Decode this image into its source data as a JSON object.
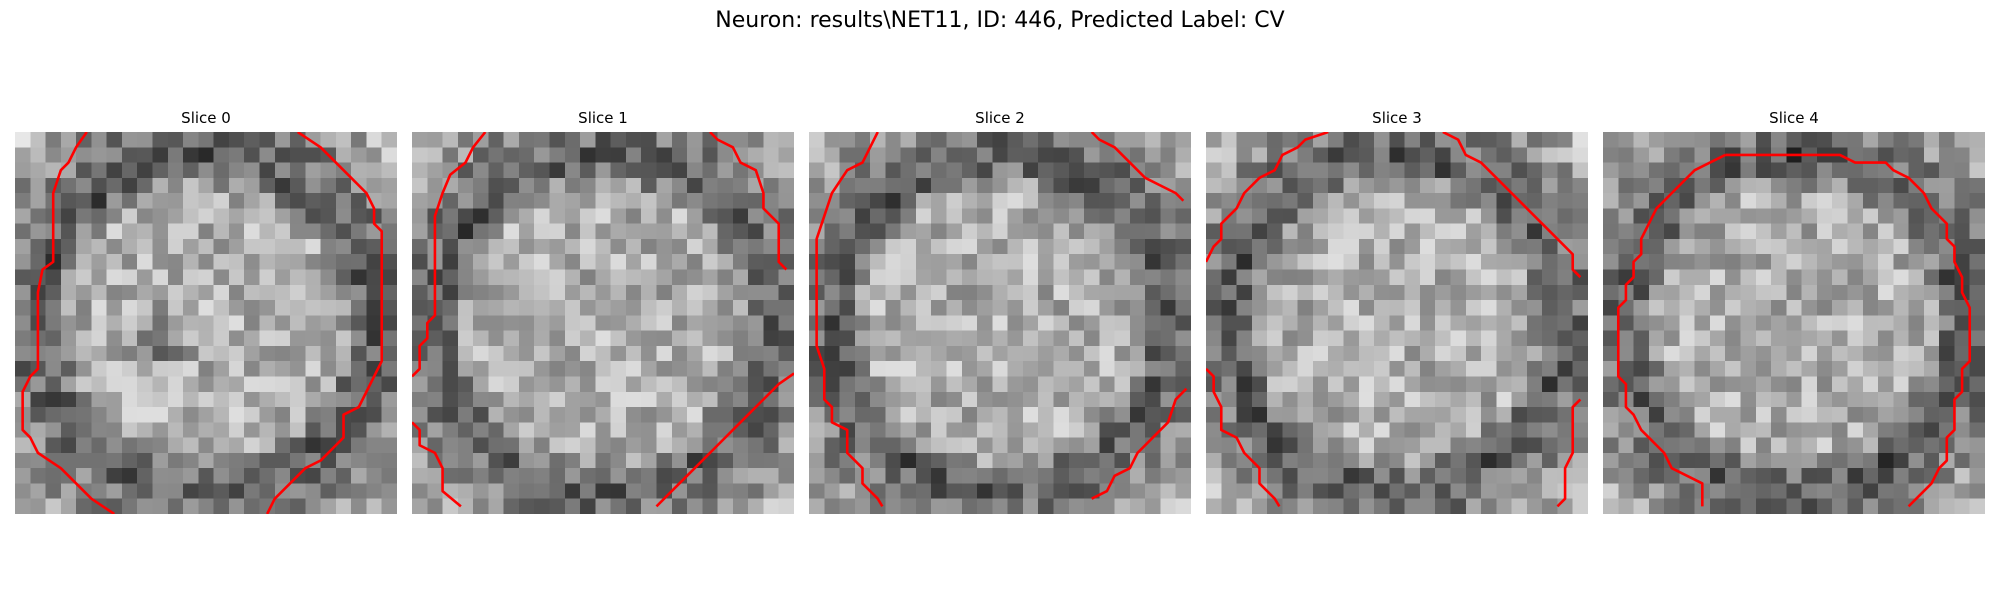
{
  "figure": {
    "title": "Neuron: results\\NET11, ID: 446, Predicted Label: CV"
  },
  "panels": [
    {
      "title": "Slice 0",
      "seed": 11,
      "dark_blob": true
    },
    {
      "title": "Slice 1",
      "seed": 23,
      "dark_blob": false
    },
    {
      "title": "Slice 2",
      "seed": 37,
      "dark_blob": false
    },
    {
      "title": "Slice 3",
      "seed": 41,
      "dark_blob": false
    },
    {
      "title": "Slice 4",
      "seed": 59,
      "dark_blob": false
    }
  ],
  "colors": {
    "contour": "#ff0000",
    "background": "#ffffff",
    "text": "#000000"
  },
  "image_grid_size": 25,
  "contours": [
    [
      [
        [
          4.7,
          0
        ],
        [
          4,
          1
        ],
        [
          3.5,
          2
        ],
        [
          3,
          2.5
        ],
        [
          2.5,
          4
        ],
        [
          2.5,
          8.5
        ],
        [
          1.8,
          9
        ],
        [
          1.5,
          10.5
        ],
        [
          1.5,
          15.5
        ],
        [
          1,
          16
        ],
        [
          0.5,
          17
        ],
        [
          0.5,
          19.5
        ],
        [
          1,
          20
        ],
        [
          1.5,
          21
        ],
        [
          3,
          22
        ],
        [
          4,
          23
        ],
        [
          5,
          24
        ],
        [
          6.5,
          25
        ]
      ],
      [
        [
          18.5,
          0
        ],
        [
          20,
          1
        ],
        [
          21,
          2
        ],
        [
          22,
          3
        ],
        [
          23,
          4
        ],
        [
          23.5,
          5
        ],
        [
          23.5,
          6
        ],
        [
          24,
          6.5
        ],
        [
          24,
          12
        ],
        [
          24,
          15
        ],
        [
          23.5,
          16
        ],
        [
          23,
          17
        ],
        [
          22.5,
          18
        ],
        [
          21.5,
          18.5
        ],
        [
          21.5,
          20
        ],
        [
          21,
          20.5
        ],
        [
          20,
          21.5
        ],
        [
          19,
          22
        ],
        [
          18,
          23
        ],
        [
          17,
          24
        ],
        [
          16.5,
          25
        ]
      ]
    ],
    [
      [
        [
          4.8,
          0
        ],
        [
          4,
          1
        ],
        [
          3.5,
          2
        ],
        [
          2.5,
          2.8
        ],
        [
          2,
          4
        ],
        [
          1.5,
          5.5
        ],
        [
          1.5,
          12
        ],
        [
          1,
          12.5
        ],
        [
          1,
          13.5
        ],
        [
          0.5,
          14
        ],
        [
          0.5,
          15.5
        ],
        [
          0,
          16
        ]
      ],
      [
        [
          0,
          19
        ],
        [
          0.5,
          19.5
        ],
        [
          0.5,
          20.5
        ],
        [
          1.5,
          21
        ],
        [
          2,
          22
        ],
        [
          2,
          23.5
        ],
        [
          3.2,
          24.5
        ]
      ],
      [
        [
          19.5,
          0
        ],
        [
          20,
          0.5
        ],
        [
          21,
          1
        ],
        [
          21.5,
          2
        ],
        [
          22.5,
          2.5
        ],
        [
          23,
          4
        ],
        [
          23,
          5
        ],
        [
          24,
          6
        ],
        [
          24,
          8.5
        ],
        [
          24.5,
          9
        ]
      ],
      [
        [
          25,
          15.8
        ],
        [
          24,
          16.5
        ],
        [
          23,
          17.5
        ],
        [
          22,
          18.5
        ],
        [
          21,
          19.5
        ],
        [
          20,
          20.5
        ],
        [
          19,
          21.5
        ],
        [
          18,
          22.5
        ],
        [
          17,
          23.5
        ],
        [
          16,
          24.5
        ]
      ]
    ],
    [
      [
        [
          4.5,
          0
        ],
        [
          4,
          1
        ],
        [
          3.5,
          2
        ],
        [
          2.5,
          2.5
        ],
        [
          1.5,
          4
        ],
        [
          1,
          5.5
        ],
        [
          0.5,
          7
        ],
        [
          0.5,
          14
        ],
        [
          1,
          15.5
        ],
        [
          1,
          17.5
        ],
        [
          1.5,
          18
        ],
        [
          1.5,
          19
        ],
        [
          2.5,
          19.5
        ],
        [
          2.5,
          21
        ],
        [
          3.5,
          22
        ],
        [
          3.5,
          23
        ],
        [
          4.5,
          24
        ],
        [
          4.8,
          24.5
        ]
      ],
      [
        [
          18.5,
          0
        ],
        [
          19,
          0.5
        ],
        [
          20,
          1
        ],
        [
          21,
          2
        ],
        [
          22,
          3
        ],
        [
          23,
          3.5
        ],
        [
          24,
          4
        ],
        [
          24.5,
          4.5
        ]
      ],
      [
        [
          24.7,
          16.8
        ],
        [
          24,
          17.5
        ],
        [
          23.5,
          19
        ],
        [
          22.5,
          20
        ],
        [
          21.5,
          21
        ],
        [
          21,
          22
        ],
        [
          20,
          22.5
        ],
        [
          19.5,
          23.5
        ],
        [
          18.5,
          24
        ]
      ]
    ],
    [
      [
        [
          8,
          0
        ],
        [
          6.5,
          0.5
        ],
        [
          6,
          1
        ],
        [
          5,
          1.5
        ],
        [
          4.5,
          2.5
        ],
        [
          3.5,
          3
        ],
        [
          2.5,
          4
        ],
        [
          2,
          5
        ],
        [
          1,
          6
        ],
        [
          1,
          7
        ],
        [
          0.5,
          7.5
        ],
        [
          0,
          8.5
        ]
      ],
      [
        [
          0,
          15.5
        ],
        [
          0.5,
          16
        ],
        [
          0.5,
          17
        ],
        [
          1,
          18
        ],
        [
          1,
          19.5
        ],
        [
          2,
          20
        ],
        [
          2.5,
          21
        ],
        [
          3.5,
          22
        ],
        [
          3.5,
          23
        ],
        [
          4.5,
          24
        ],
        [
          4.8,
          24.5
        ]
      ],
      [
        [
          15.5,
          0
        ],
        [
          16.5,
          0.5
        ],
        [
          17,
          1.5
        ],
        [
          18,
          2
        ],
        [
          19,
          3
        ],
        [
          20,
          4
        ],
        [
          21,
          5
        ],
        [
          22,
          6
        ],
        [
          23,
          7
        ],
        [
          24,
          8
        ],
        [
          24,
          9
        ],
        [
          24.5,
          9.5
        ]
      ],
      [
        [
          24.5,
          17.5
        ],
        [
          24,
          18
        ],
        [
          24,
          21
        ],
        [
          23.5,
          22
        ],
        [
          23.5,
          24
        ],
        [
          23,
          24.5
        ]
      ]
    ],
    [
      [
        [
          8,
          1.5
        ],
        [
          7,
          2
        ],
        [
          6,
          2.5
        ],
        [
          5.5,
          3
        ],
        [
          4.5,
          4
        ],
        [
          3.5,
          5
        ],
        [
          3,
          6
        ],
        [
          2.5,
          7
        ],
        [
          2.5,
          8
        ],
        [
          2,
          8.5
        ],
        [
          2,
          9.5
        ],
        [
          1.5,
          10
        ],
        [
          1.5,
          11
        ],
        [
          1,
          11.5
        ],
        [
          1,
          16
        ],
        [
          1.5,
          16.5
        ],
        [
          1.5,
          18
        ],
        [
          2,
          18.5
        ],
        [
          2.5,
          19.5
        ],
        [
          3,
          20
        ],
        [
          3.5,
          20.5
        ],
        [
          4,
          21
        ],
        [
          4.5,
          22
        ],
        [
          5.5,
          22.5
        ],
        [
          6.5,
          23
        ],
        [
          6.5,
          24.5
        ]
      ],
      [
        [
          8,
          1.5
        ],
        [
          15.5,
          1.5
        ],
        [
          16.5,
          2
        ],
        [
          18.5,
          2
        ],
        [
          19,
          2.5
        ],
        [
          20,
          3
        ],
        [
          21,
          4
        ],
        [
          21.5,
          5
        ],
        [
          22.5,
          6
        ],
        [
          22.5,
          7
        ],
        [
          23,
          7.5
        ],
        [
          23,
          8.5
        ],
        [
          23.5,
          9.5
        ],
        [
          23.5,
          10.5
        ],
        [
          24,
          11.5
        ],
        [
          24,
          15
        ],
        [
          23.5,
          15.5
        ],
        [
          23.5,
          17
        ],
        [
          23,
          17.5
        ],
        [
          23,
          19.5
        ],
        [
          22.5,
          20
        ],
        [
          22.5,
          21.5
        ],
        [
          22,
          22
        ],
        [
          21.5,
          23
        ],
        [
          20.5,
          24
        ],
        [
          20,
          24.5
        ]
      ]
    ]
  ]
}
